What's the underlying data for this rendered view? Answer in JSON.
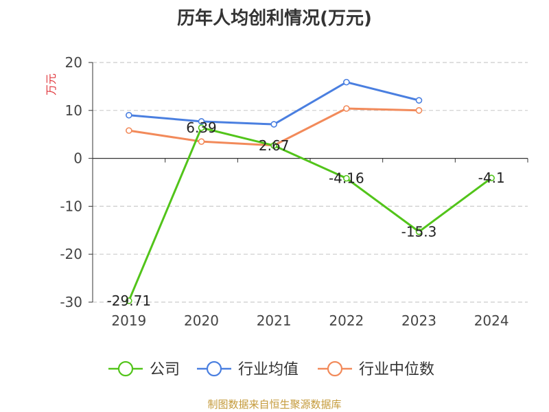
{
  "title": "历年人均创利情况(万元)",
  "footer": "制图数据来自恒生聚源数据库",
  "chart_data": {
    "type": "line",
    "title": "历年人均创利情况(万元)",
    "ylabel": "万元",
    "xlabel": "",
    "categories": [
      "2019",
      "2020",
      "2021",
      "2022",
      "2023",
      "2024"
    ],
    "ylim": [
      -30,
      20
    ],
    "yticks": [
      -30,
      -20,
      -10,
      0,
      10,
      20
    ],
    "grid": true,
    "legend_position": "bottom",
    "series": [
      {
        "name": "公司",
        "color": "#52c41a",
        "values": [
          -29.71,
          6.39,
          2.67,
          -4.16,
          -15.3,
          -4.1
        ],
        "labels": [
          "-29.71",
          "6.39",
          "2.67",
          "-4.16",
          "-15.3",
          "-4.1"
        ]
      },
      {
        "name": "行业均值",
        "color": "#4a7fe0",
        "values": [
          9.0,
          7.7,
          7.1,
          15.9,
          12.1,
          null
        ]
      },
      {
        "name": "行业中位数",
        "color": "#f28a5a",
        "values": [
          5.8,
          3.5,
          2.7,
          10.4,
          10.0,
          null
        ]
      }
    ]
  }
}
